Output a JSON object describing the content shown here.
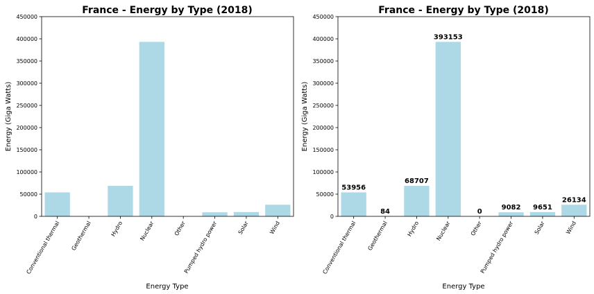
{
  "colors": {
    "bar": "#add8e6",
    "axis": "#000000",
    "background": "#ffffff"
  },
  "chart_data": [
    {
      "type": "bar",
      "title": "France - Energy by Type (2018)",
      "xlabel": "Energy Type",
      "ylabel": "Energy (Giga Watts)",
      "categories": [
        "Conventional thermal",
        "Geothermal",
        "Hydro",
        "Nuclear",
        "Other",
        "Pumped hydro power",
        "Solar",
        "Wind"
      ],
      "values": [
        53956,
        84,
        68707,
        393153,
        0,
        9082,
        9651,
        26134
      ],
      "ylim": [
        0,
        450000
      ],
      "yticks": [
        "0",
        "50000",
        "100000",
        "150000",
        "200000",
        "250000",
        "300000",
        "350000",
        "400000",
        "450000"
      ],
      "show_value_labels": false,
      "grid": false
    },
    {
      "type": "bar",
      "title": "France - Energy by Type (2018)",
      "xlabel": "Energy Type",
      "ylabel": "Energy (Giga Watts)",
      "categories": [
        "Conventional thermal",
        "Geothermal",
        "Hydro",
        "Nuclear",
        "Other",
        "Pumped hydro power",
        "Solar",
        "Wind"
      ],
      "values": [
        53956,
        84,
        68707,
        393153,
        0,
        9082,
        9651,
        26134
      ],
      "ylim": [
        0,
        450000
      ],
      "yticks": [
        "0",
        "50000",
        "100000",
        "150000",
        "200000",
        "250000",
        "300000",
        "350000",
        "400000",
        "450000"
      ],
      "show_value_labels": true,
      "grid": false
    }
  ]
}
